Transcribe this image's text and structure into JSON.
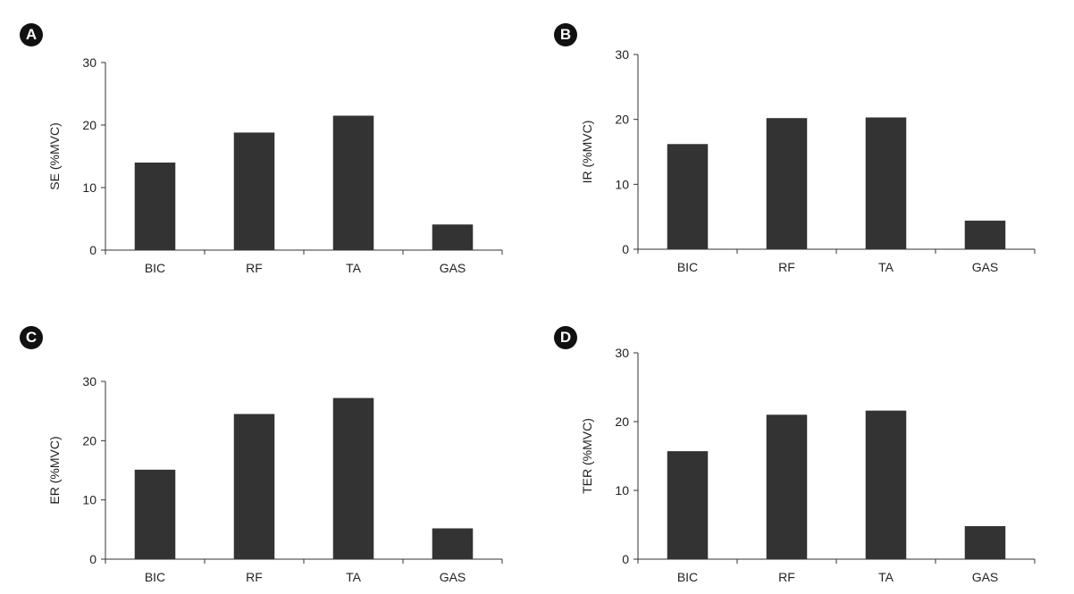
{
  "chart_data": [
    {
      "panel_label": "A",
      "type": "bar",
      "categories": [
        "BIC",
        "RF",
        "TA",
        "GAS"
      ],
      "values": [
        14,
        18.8,
        21.5,
        4.1
      ],
      "xlabel": "",
      "ylabel": "SE (%MVC)",
      "ylim": [
        0,
        30
      ],
      "yticks": [
        0,
        10,
        20,
        30
      ],
      "bar_color": "#333333",
      "grid": false
    },
    {
      "panel_label": "B",
      "type": "bar",
      "categories": [
        "BIC",
        "RF",
        "TA",
        "GAS"
      ],
      "values": [
        16.2,
        20.2,
        20.3,
        4.4
      ],
      "xlabel": "",
      "ylabel": "IR (%MVC)",
      "ylim": [
        0,
        30
      ],
      "yticks": [
        0,
        10,
        20,
        30
      ],
      "bar_color": "#333333",
      "grid": false
    },
    {
      "panel_label": "C",
      "type": "bar",
      "categories": [
        "BIC",
        "RF",
        "TA",
        "GAS"
      ],
      "values": [
        15.1,
        24.5,
        27.2,
        5.2
      ],
      "xlabel": "",
      "ylabel": "ER (%MVC)",
      "ylim": [
        0,
        30
      ],
      "yticks": [
        0,
        10,
        20,
        30
      ],
      "bar_color": "#333333",
      "grid": false
    },
    {
      "panel_label": "D",
      "type": "bar",
      "categories": [
        "BIC",
        "RF",
        "TA",
        "GAS"
      ],
      "values": [
        15.7,
        21,
        21.6,
        4.8
      ],
      "xlabel": "",
      "ylabel": "TER (%MVC)",
      "ylim": [
        0,
        30
      ],
      "yticks": [
        0,
        10,
        20,
        30
      ],
      "bar_color": "#333333",
      "grid": false
    }
  ]
}
